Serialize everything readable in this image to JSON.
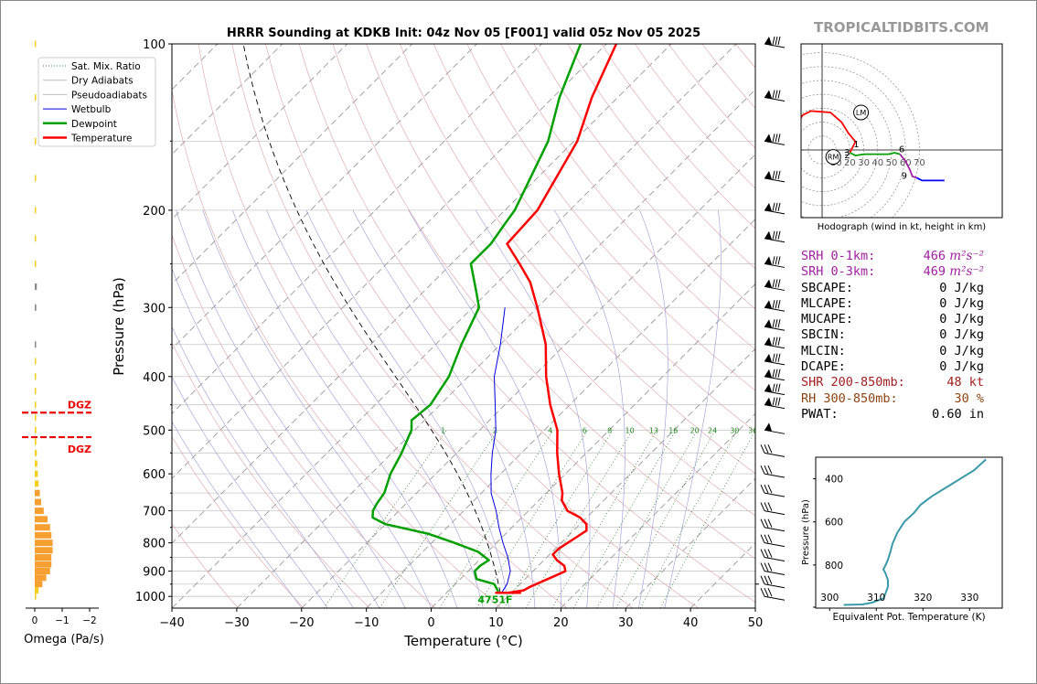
{
  "page": {
    "title": "HRRR Sounding at KDKB Init: 04z Nov 05 [F001] valid 05z Nov 05 2025",
    "brand": "TROPICALTIDBITS.COM"
  },
  "skewt": {
    "xlabel": "Temperature (°C)",
    "ylabel": "Pressure (hPa)",
    "xlim": [
      -40,
      50
    ],
    "ylim": [
      1050,
      100
    ],
    "xticks": [
      "−40",
      "−30",
      "−20",
      "−10",
      "0",
      "10",
      "20",
      "30",
      "40",
      "50"
    ],
    "yticks": [
      "100",
      "200",
      "300",
      "400",
      "500",
      "600",
      "700",
      "800",
      "900",
      "1000"
    ],
    "legend": [
      {
        "label": "Sat. Mix. Ratio",
        "color": "#2a8a2a",
        "style": "dotted"
      },
      {
        "label": "Dry Adiabats",
        "color": "#bbbbbb",
        "style": "solid"
      },
      {
        "label": "Pseudoadiabats",
        "color": "#bbbbbb",
        "style": "solid"
      },
      {
        "label": "Wetbulb",
        "color": "#0000dd",
        "style": "solid"
      },
      {
        "label": "Dewpoint",
        "color": "#00a000",
        "style": "solid"
      },
      {
        "label": "Temperature",
        "color": "#ff0000",
        "style": "solid"
      }
    ],
    "mixing_ratio_labels": [
      "1",
      "2",
      "4",
      "6",
      "8",
      "10",
      "13",
      "16",
      "20",
      "24",
      "30",
      "36"
    ],
    "lcl_label": "4751F"
  },
  "omega": {
    "xlabel": "Omega (Pa/s)",
    "xticks": [
      "0",
      "−1",
      "−2"
    ],
    "dgz_label": "DGZ"
  },
  "hodograph": {
    "caption": "Hodograph (wind in kt, height in km)",
    "rings": [
      "10",
      "20",
      "30",
      "40",
      "50",
      "60",
      "70"
    ],
    "height_labels": [
      "1",
      "2",
      "3",
      "6",
      "9"
    ],
    "markers": [
      "LM",
      "RM"
    ]
  },
  "theta_e": {
    "xlabel": "Equivalent Pot. Temperature (K)",
    "ylabel": "Pressure (hPa)",
    "xticks": [
      "300",
      "310",
      "320",
      "330"
    ],
    "yticks": [
      "400",
      "600",
      "800"
    ]
  },
  "params": [
    {
      "label": "SRH 0-1km:",
      "value": "466",
      "unit": "m²s⁻²",
      "color": "#a020a0"
    },
    {
      "label": "SRH 0-3km:",
      "value": "469",
      "unit": "m²s⁻²",
      "color": "#a020a0"
    },
    {
      "label": "SBCAPE:",
      "value": "0 J/kg",
      "unit": "",
      "color": "#000000"
    },
    {
      "label": "MLCAPE:",
      "value": "0 J/kg",
      "unit": "",
      "color": "#000000"
    },
    {
      "label": "MUCAPE:",
      "value": "0 J/kg",
      "unit": "",
      "color": "#000000"
    },
    {
      "label": "SBCIN:",
      "value": "0 J/kg",
      "unit": "",
      "color": "#000000"
    },
    {
      "label": "MLCIN:",
      "value": "0 J/kg",
      "unit": "",
      "color": "#000000"
    },
    {
      "label": "DCAPE:",
      "value": "0 J/kg",
      "unit": "",
      "color": "#000000"
    },
    {
      "label": "SHR 200-850mb:",
      "value": "48 kt",
      "unit": "",
      "color": "#a02020"
    },
    {
      "label": "RH 300-850mb:",
      "value": "30 %",
      "unit": "",
      "color": "#8b4513"
    },
    {
      "label": "PWAT:",
      "value": "0.60 in",
      "unit": "",
      "color": "#000000"
    }
  ],
  "chart_data": [
    {
      "type": "line",
      "title": "HRRR Sounding at KDKB Init: 04z Nov 05 [F001] valid 05z Nov 05 2025",
      "xlabel": "Temperature (°C)",
      "ylabel": "Pressure (hPa)",
      "xlim": [
        -40,
        50
      ],
      "ylim": [
        1050,
        100
      ],
      "skew_degrees": 45,
      "series": [
        {
          "name": "Temperature",
          "color": "#ff0000",
          "points": [
            [
              985,
              9.5
            ],
            [
              975,
              11.5
            ],
            [
              960,
              12
            ],
            [
              930,
              13.5
            ],
            [
              900,
              15
            ],
            [
              880,
              14
            ],
            [
              860,
              12
            ],
            [
              840,
              10.5
            ],
            [
              820,
              10.5
            ],
            [
              800,
              11
            ],
            [
              780,
              11.5
            ],
            [
              760,
              12
            ],
            [
              740,
              11
            ],
            [
              720,
              9
            ],
            [
              700,
              6
            ],
            [
              670,
              3.5
            ],
            [
              650,
              2.5
            ],
            [
              600,
              -1
            ],
            [
              550,
              -4.5
            ],
            [
              500,
              -8
            ],
            [
              450,
              -13
            ],
            [
              400,
              -18
            ],
            [
              350,
              -23
            ],
            [
              300,
              -30
            ],
            [
              270,
              -35
            ],
            [
              250,
              -39.5
            ],
            [
              230,
              -44.5
            ],
            [
              200,
              -45
            ],
            [
              150,
              -49.5
            ],
            [
              125,
              -54
            ],
            [
              100,
              -58.5
            ]
          ]
        },
        {
          "name": "Dewpoint",
          "color": "#00a000",
          "points": [
            [
              985,
              8
            ],
            [
              975,
              7.5
            ],
            [
              950,
              6
            ],
            [
              930,
              2.5
            ],
            [
              900,
              1
            ],
            [
              880,
              1
            ],
            [
              860,
              1.5
            ],
            [
              830,
              -1.5
            ],
            [
              800,
              -6.5
            ],
            [
              770,
              -12
            ],
            [
              740,
              -20
            ],
            [
              720,
              -23
            ],
            [
              700,
              -24
            ],
            [
              680,
              -24.5
            ],
            [
              650,
              -25
            ],
            [
              600,
              -27
            ],
            [
              550,
              -28.5
            ],
            [
              500,
              -30.5
            ],
            [
              480,
              -32
            ],
            [
              450,
              -31.5
            ],
            [
              400,
              -33
            ],
            [
              350,
              -36
            ],
            [
              300,
              -39
            ],
            [
              280,
              -42
            ],
            [
              250,
              -47
            ],
            [
              230,
              -47
            ],
            [
              210,
              -48
            ],
            [
              200,
              -48.5
            ],
            [
              150,
              -54
            ],
            [
              125,
              -59
            ],
            [
              100,
              -64
            ]
          ]
        },
        {
          "name": "Wetbulb",
          "color": "#0000dd",
          "points": [
            [
              985,
              8.5
            ],
            [
              950,
              8
            ],
            [
              900,
              6.5
            ],
            [
              850,
              4
            ],
            [
              800,
              1
            ],
            [
              750,
              -2
            ],
            [
              700,
              -5
            ],
            [
              650,
              -8.5
            ],
            [
              600,
              -11.5
            ],
            [
              550,
              -14.5
            ],
            [
              500,
              -17.5
            ],
            [
              450,
              -21.5
            ],
            [
              400,
              -26
            ],
            [
              350,
              -30
            ],
            [
              300,
              -35
            ]
          ]
        }
      ]
    },
    {
      "type": "bar",
      "xlabel": "Omega (Pa/s)",
      "orientation": "horizontal",
      "pressure_levels": [
        1000,
        975,
        950,
        925,
        900,
        875,
        850,
        825,
        800,
        775,
        750,
        725,
        700,
        675,
        650,
        625,
        600,
        575,
        550,
        525,
        500,
        475,
        450,
        425,
        400,
        375,
        350,
        300,
        275,
        250,
        225,
        200,
        175,
        150,
        125,
        100
      ],
      "values": [
        0.05,
        0.15,
        0.3,
        0.45,
        0.6,
        0.65,
        0.65,
        0.7,
        0.7,
        0.65,
        0.6,
        0.5,
        0.35,
        0.25,
        0.2,
        0.15,
        0.12,
        0.1,
        0.08,
        0.06,
        0.06,
        0.05,
        0.05,
        0.05,
        0.05,
        0.04,
        0.04,
        0.06,
        0.08,
        0.05,
        0.04,
        0.03,
        0.03,
        0.03,
        0.02,
        0.02
      ],
      "xlim": [
        0.5,
        -2
      ],
      "dgz_bounds_hpa": [
        465,
        515
      ]
    },
    {
      "type": "line",
      "caption": "Hodograph (wind in kt, height in km)",
      "units": "kt",
      "series": [
        {
          "name": "0-1 km",
          "color": "#ff0000",
          "points": [
            [
              -27,
              -8
            ],
            [
              -25,
              8
            ],
            [
              -14,
              25
            ],
            [
              -8,
              28
            ],
            [
              6,
              27
            ],
            [
              14,
              20
            ],
            [
              19,
              12
            ],
            [
              24,
              6
            ]
          ]
        },
        {
          "name": "1-3 km",
          "color": "#ff0000",
          "points": [
            [
              24,
              6
            ],
            [
              20,
              -2
            ]
          ]
        },
        {
          "name": "3-6 km",
          "color": "#00a000",
          "points": [
            [
              20,
              -2
            ],
            [
              24,
              -4
            ],
            [
              30,
              -3
            ],
            [
              37,
              -3
            ],
            [
              48,
              -3
            ],
            [
              52,
              -2
            ],
            [
              56,
              -3
            ]
          ]
        },
        {
          "name": "6-9 km",
          "color": "#a020a0",
          "points": [
            [
              56,
              -3
            ],
            [
              60,
              -8
            ],
            [
              63,
              -14
            ],
            [
              65,
              -19
            ],
            [
              68,
              -20
            ]
          ]
        },
        {
          "name": "9+ km",
          "color": "#0000ff",
          "points": [
            [
              68,
              -20
            ],
            [
              72,
              -22
            ],
            [
              76,
              -22
            ],
            [
              82,
              -22
            ],
            [
              88,
              -22
            ]
          ]
        }
      ],
      "rings_kt": [
        10,
        20,
        30,
        40,
        50,
        60,
        70
      ],
      "markers": [
        {
          "label": "LM",
          "u": 28,
          "v": 27
        },
        {
          "label": "RM",
          "u": 8,
          "v": -5
        }
      ]
    },
    {
      "type": "line",
      "xlabel": "Equivalent Pot. Temperature (K)",
      "ylabel": "Pressure (hPa)",
      "xlim": [
        297,
        337
      ],
      "ylim": [
        1000,
        300
      ],
      "series": [
        {
          "name": "Theta-e",
          "color": "#3a9aa8",
          "points": [
            [
              985,
              303
            ],
            [
              983,
              307
            ],
            [
              975,
              309
            ],
            [
              955,
              311.5
            ],
            [
              930,
              312
            ],
            [
              900,
              312.5
            ],
            [
              870,
              312.5
            ],
            [
              840,
              312
            ],
            [
              820,
              311.5
            ],
            [
              800,
              312
            ],
            [
              775,
              312.5
            ],
            [
              740,
              313
            ],
            [
              700,
              313.5
            ],
            [
              650,
              314.5
            ],
            [
              600,
              316
            ],
            [
              560,
              318
            ],
            [
              520,
              319.5
            ],
            [
              480,
              322
            ],
            [
              440,
              325
            ],
            [
              400,
              328
            ],
            [
              360,
              331
            ],
            [
              330,
              332.5
            ],
            [
              310,
              333.5
            ]
          ]
        }
      ]
    }
  ]
}
